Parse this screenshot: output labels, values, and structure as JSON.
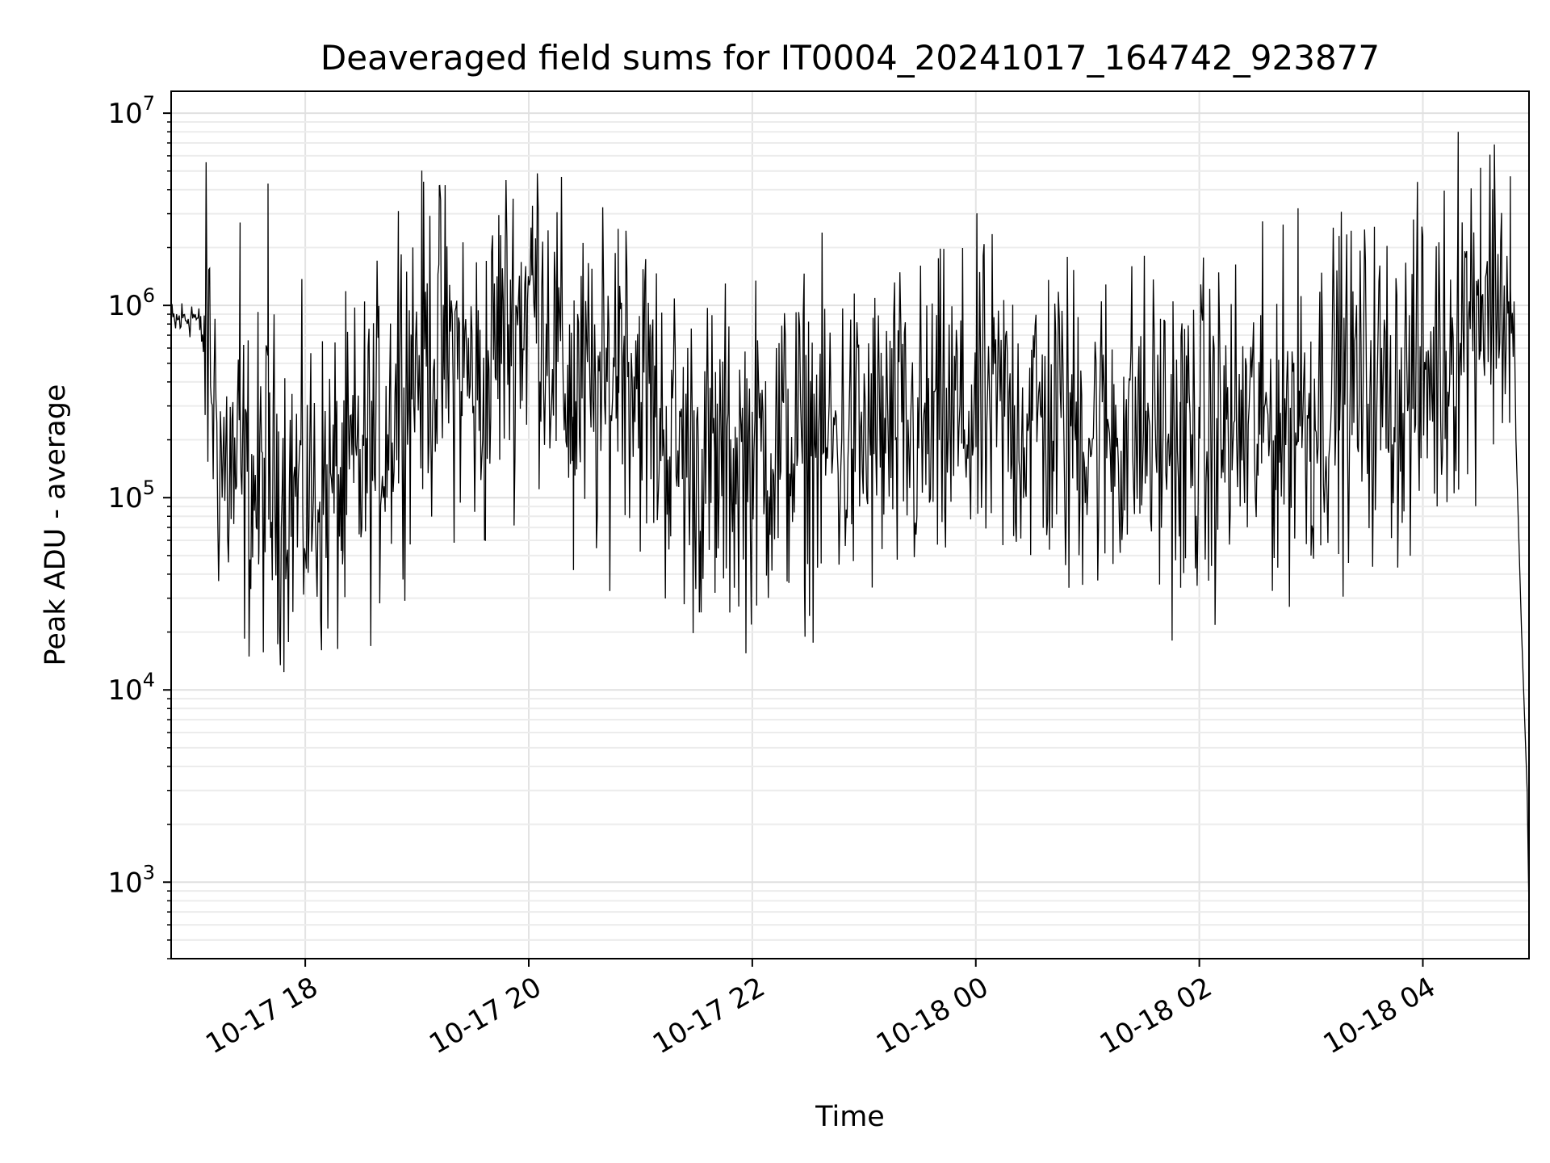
{
  "chart_data": {
    "type": "line",
    "title": "Deaveraged field sums for IT0004_20241017_164742_923877",
    "xlabel": "Time",
    "ylabel": "Peak ADU - average",
    "yscale": "log",
    "ylim": [
      400,
      13000000
    ],
    "xlim": [
      "2024-10-17 16:48",
      "2024-10-18 04:57"
    ],
    "grid": true,
    "legend": "none",
    "line_color": "#000000",
    "x_ticks": [
      {
        "value": "2024-10-17 18:00",
        "label": "10-17 18"
      },
      {
        "value": "2024-10-17 20:00",
        "label": "10-17 20"
      },
      {
        "value": "2024-10-17 22:00",
        "label": "10-17 22"
      },
      {
        "value": "2024-10-18 00:00",
        "label": "10-18 00"
      },
      {
        "value": "2024-10-18 02:00",
        "label": "10-18 02"
      },
      {
        "value": "2024-10-18 04:00",
        "label": "10-18 04"
      }
    ],
    "y_ticks": [
      {
        "value": 1000,
        "base": "10",
        "exp": "3"
      },
      {
        "value": 10000,
        "base": "10",
        "exp": "4"
      },
      {
        "value": 100000,
        "base": "10",
        "exp": "5"
      },
      {
        "value": 1000000,
        "base": "10",
        "exp": "6"
      },
      {
        "value": 10000000,
        "base": "10",
        "exp": "7"
      }
    ],
    "series": [
      {
        "x": [
          "2024-10-17 16:48",
          "2024-10-17 17:00",
          "2024-10-17 17:08",
          "2024-10-17 17:15",
          "2024-10-17 17:30",
          "2024-10-17 17:45",
          "2024-10-17 18:00",
          "2024-10-17 18:20",
          "2024-10-17 18:40",
          "2024-10-17 18:55",
          "2024-10-17 19:10",
          "2024-10-17 19:25",
          "2024-10-17 19:35",
          "2024-10-17 19:45",
          "2024-10-17 19:55",
          "2024-10-17 20:05",
          "2024-10-17 20:20",
          "2024-10-17 20:40",
          "2024-10-17 20:50",
          "2024-10-17 21:00",
          "2024-10-17 21:15",
          "2024-10-17 21:30",
          "2024-10-17 21:50",
          "2024-10-17 22:10",
          "2024-10-17 22:30",
          "2024-10-17 22:50",
          "2024-10-17 23:10",
          "2024-10-17 23:30",
          "2024-10-17 23:50",
          "2024-10-18 00:10",
          "2024-10-18 00:30",
          "2024-10-18 00:50",
          "2024-10-18 01:10",
          "2024-10-18 01:30",
          "2024-10-18 01:50",
          "2024-10-18 02:10",
          "2024-10-18 02:30",
          "2024-10-18 02:50",
          "2024-10-18 03:10",
          "2024-10-18 03:30",
          "2024-10-18 03:50",
          "2024-10-18 04:10",
          "2024-10-18 04:20",
          "2024-10-18 04:30",
          "2024-10-18 04:40",
          "2024-10-18 04:46",
          "2024-10-18 04:50",
          "2024-10-18 04:53",
          "2024-10-18 04:56",
          "2024-10-18 04:57"
        ],
        "y": [
          800000,
          900000,
          600000,
          150000,
          110000,
          120000,
          100000,
          110000,
          200000,
          500000,
          600000,
          500000,
          300000,
          800000,
          900000,
          1200000,
          400000,
          300000,
          700000,
          400000,
          200000,
          150000,
          150000,
          180000,
          200000,
          190000,
          210000,
          200000,
          250000,
          280000,
          260000,
          250000,
          220000,
          230000,
          200000,
          220000,
          230000,
          260000,
          350000,
          380000,
          350000,
          500000,
          800000,
          1100000,
          1300000,
          900000,
          200000,
          20000,
          3000,
          700
        ],
        "peaks": [
          {
            "x": "2024-10-17 17:40",
            "y": 4300000
          },
          {
            "x": "2024-10-17 19:12",
            "y": 4200000
          },
          {
            "x": "2024-10-17 18:50",
            "y": 3100000
          },
          {
            "x": "2024-10-17 20:02",
            "y": 3300000
          },
          {
            "x": "2024-10-17 17:25",
            "y": 2700000
          },
          {
            "x": "2024-10-17 20:48",
            "y": 2500000
          },
          {
            "x": "2024-10-18 02:53",
            "y": 3200000
          },
          {
            "x": "2024-10-18 04:19",
            "y": 8000000
          },
          {
            "x": "2024-10-18 04:31",
            "y": 5200000
          },
          {
            "x": "2024-10-18 04:47",
            "y": 4700000
          },
          {
            "x": "2024-10-18 03:55",
            "y": 2800000
          },
          {
            "x": "2024-10-18 03:15",
            "y": 2300000
          }
        ],
        "troughs": [
          {
            "x": "2024-10-17 17:35",
            "y": 45000
          },
          {
            "x": "2024-10-17 18:20",
            "y": 45000
          },
          {
            "x": "2024-10-17 20:24",
            "y": 42000
          },
          {
            "x": "2024-10-17 21:40",
            "y": 32000
          },
          {
            "x": "2024-10-17 22:28",
            "y": 35000
          },
          {
            "x": "2024-10-18 00:50",
            "y": 34000
          },
          {
            "x": "2024-10-18 01:50",
            "y": 34000
          },
          {
            "x": "2024-10-18 02:05",
            "y": 37000
          },
          {
            "x": "2024-10-18 03:00",
            "y": 50000
          }
        ]
      }
    ]
  }
}
